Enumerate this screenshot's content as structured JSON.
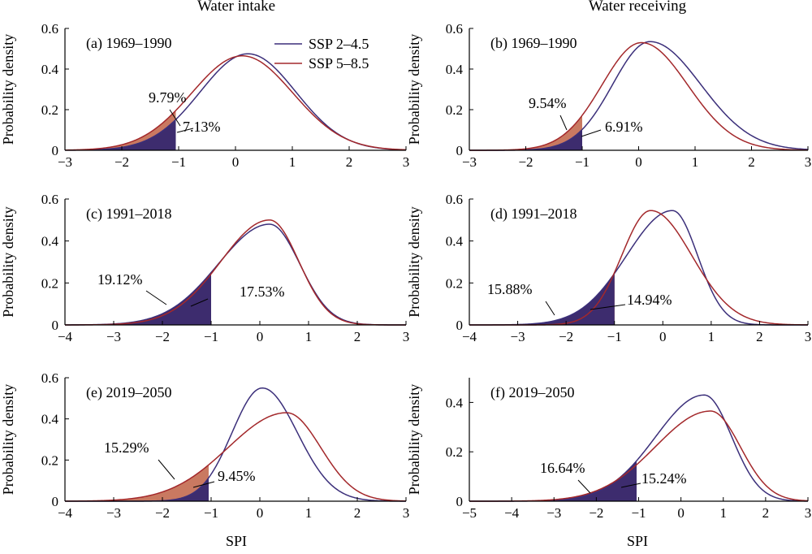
{
  "figure": {
    "column_titles": [
      "Water intake",
      "Water receiving"
    ],
    "xlabel": "SPI",
    "ylabel": "Probability density"
  },
  "legend": {
    "entries": [
      {
        "label": "SSP 2–4.5",
        "color": "#3b2f7a"
      },
      {
        "label": "SSP 5–8.5",
        "color": "#a3282b"
      }
    ]
  },
  "chart_data": [
    {
      "type": "line",
      "panel": "(a) 1969–1990",
      "column": "Water intake",
      "xlim": [
        -3,
        3
      ],
      "ylim": [
        0,
        0.6
      ],
      "xticks": [
        -3,
        -2,
        -1,
        0,
        1,
        2,
        3
      ],
      "yticks": [
        0,
        0.2,
        0.4,
        0.6
      ],
      "threshold": -1.05,
      "series": [
        {
          "name": "SSP 2–4.5",
          "color": "#3b2f7a",
          "fill": "#3d2c6e",
          "shape": "normal",
          "mu": 0.22,
          "sigma": 0.84,
          "peak": 0.475
        },
        {
          "name": "SSP 5–8.5",
          "color": "#a3282b",
          "fill": "#c67259",
          "shape": "normal",
          "mu": 0.12,
          "sigma": 0.89,
          "peak": 0.465
        }
      ],
      "annotations": [
        {
          "text": "9.79%",
          "series": "SSP 5–8.5"
        },
        {
          "text": "7.13%",
          "series": "SSP 2–4.5"
        }
      ]
    },
    {
      "type": "line",
      "panel": "(b) 1969–1990",
      "column": "Water receiving",
      "xlim": [
        -3,
        3
      ],
      "ylim": [
        0,
        0.6
      ],
      "xticks": [
        -3,
        -2,
        -1,
        0,
        1,
        2,
        3
      ],
      "yticks": [
        0,
        0.2,
        0.4,
        0.6
      ],
      "threshold": -1.0,
      "series": [
        {
          "name": "SSP 2–4.5",
          "color": "#3b2f7a",
          "fill": "#3d2c6e",
          "shape": "skew",
          "mu": 0.2,
          "sL": 0.66,
          "sR": 0.9,
          "peak": 0.535
        },
        {
          "name": "SSP 5–8.5",
          "color": "#a3282b",
          "fill": "#c67259",
          "shape": "skew",
          "mu": 0.05,
          "sL": 0.7,
          "sR": 0.82,
          "peak": 0.53
        }
      ],
      "annotations": [
        {
          "text": "9.54%",
          "series": "SSP 5–8.5"
        },
        {
          "text": "6.91%",
          "series": "SSP 2–4.5"
        }
      ]
    },
    {
      "type": "line",
      "panel": "(c) 1991–2018",
      "column": "Water intake",
      "xlim": [
        -4,
        3
      ],
      "ylim": [
        0,
        0.6
      ],
      "xticks": [
        -4,
        -3,
        -2,
        -1,
        0,
        1,
        2,
        3
      ],
      "yticks": [
        0,
        0.2,
        0.4,
        0.6
      ],
      "threshold": -1.0,
      "series": [
        {
          "name": "SSP 2–4.5",
          "color": "#3b2f7a",
          "fill": "#3d2c6e",
          "shape": "skew",
          "mu": 0.2,
          "sL": 1.05,
          "sR": 0.62,
          "peak": 0.48
        },
        {
          "name": "SSP 5–8.5",
          "color": "#a3282b",
          "fill": "#a4322f",
          "shape": "skew",
          "mu": 0.2,
          "sL": 1.0,
          "sR": 0.6,
          "peak": 0.5
        }
      ],
      "annotations": [
        {
          "text": "19.12%",
          "series": "SSP 2–4.5"
        },
        {
          "text": "17.53%",
          "series": "SSP 5–8.5"
        }
      ]
    },
    {
      "type": "line",
      "panel": "(d) 1991–2018",
      "column": "Water receiving",
      "xlim": [
        -4,
        3
      ],
      "ylim": [
        0,
        0.6
      ],
      "xticks": [
        -4,
        -3,
        -2,
        -1,
        0,
        1,
        2,
        3
      ],
      "yticks": [
        0,
        0.2,
        0.4,
        0.6
      ],
      "threshold": -1.0,
      "series": [
        {
          "name": "SSP 2–4.5",
          "color": "#3b2f7a",
          "fill": "#3d2c6e",
          "shape": "skew",
          "mu": 0.2,
          "sL": 0.95,
          "sR": 0.52,
          "peak": 0.545
        },
        {
          "name": "SSP 5–8.5",
          "color": "#a3282b",
          "fill": "#a4322f",
          "shape": "skew",
          "mu": -0.25,
          "sL": 0.6,
          "sR": 0.85,
          "peak": 0.545
        }
      ],
      "annotations": [
        {
          "text": "15.88%",
          "series": "SSP 2–4.5"
        },
        {
          "text": "14.94%",
          "series": "SSP 5–8.5"
        }
      ]
    },
    {
      "type": "line",
      "panel": "(e) 2019–2050",
      "column": "Water intake",
      "xlim": [
        -4,
        3
      ],
      "ylim": [
        0,
        0.6
      ],
      "xticks": [
        -4,
        -3,
        -2,
        -1,
        0,
        1,
        2,
        3
      ],
      "yticks": [
        0,
        0.2,
        0.4,
        0.6
      ],
      "threshold": -1.05,
      "series": [
        {
          "name": "SSP 2–4.5",
          "color": "#3b2f7a",
          "fill": "#3d2c6e",
          "shape": "skew",
          "mu": 0.05,
          "sL": 0.62,
          "sR": 0.72,
          "peak": 0.55
        },
        {
          "name": "SSP 5–8.5",
          "color": "#a3282b",
          "fill": "#c67259",
          "shape": "skew",
          "mu": 0.55,
          "sL": 1.2,
          "sR": 0.7,
          "peak": 0.43
        }
      ],
      "annotations": [
        {
          "text": "15.29%",
          "series": "SSP 5–8.5"
        },
        {
          "text": "9.45%",
          "series": "SSP 2–4.5"
        }
      ]
    },
    {
      "type": "line",
      "panel": "(f) 2019–2050",
      "column": "Water receiving",
      "xlim": [
        -5,
        3
      ],
      "ylim": [
        0,
        0.5
      ],
      "xticks": [
        -5,
        -4,
        -3,
        -2,
        -1,
        0,
        1,
        2,
        3
      ],
      "yticks": [
        0,
        0.2,
        0.4
      ],
      "threshold": -1.05,
      "series": [
        {
          "name": "SSP 2–4.5",
          "color": "#3b2f7a",
          "fill": "#3d2c6e",
          "shape": "skew",
          "mu": 0.55,
          "sL": 1.15,
          "sR": 0.65,
          "peak": 0.43
        },
        {
          "name": "SSP 5–8.5",
          "color": "#a3282b",
          "fill": "#3d2c6e",
          "shape": "skew",
          "mu": 0.7,
          "sL": 1.3,
          "sR": 0.7,
          "peak": 0.365
        }
      ],
      "annotations": [
        {
          "text": "16.64%",
          "series": "SSP 5–8.5"
        },
        {
          "text": "15.24%",
          "series": "SSP 2–4.5"
        }
      ]
    }
  ]
}
